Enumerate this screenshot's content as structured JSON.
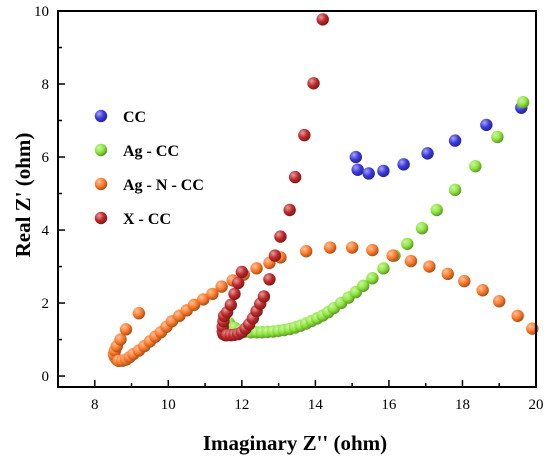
{
  "chart_data": {
    "type": "scatter",
    "xlabel": "Imaginary Z'' (ohm)",
    "ylabel": "Real Z' (ohm)",
    "xlim": [
      7,
      20
    ],
    "ylim": [
      -0.3,
      10
    ],
    "xticks": [
      8,
      10,
      12,
      14,
      16,
      18,
      20
    ],
    "yticks": [
      0,
      2,
      4,
      6,
      8,
      10
    ],
    "grid": false,
    "legend_position": "upper-left",
    "series": [
      {
        "name": "CC",
        "color": "#3a3ae0",
        "points": [
          [
            15.1,
            6.0
          ],
          [
            15.15,
            5.65
          ],
          [
            15.45,
            5.55
          ],
          [
            15.85,
            5.62
          ],
          [
            16.4,
            5.8
          ],
          [
            17.05,
            6.1
          ],
          [
            17.8,
            6.45
          ],
          [
            18.65,
            6.88
          ],
          [
            19.6,
            7.35
          ]
        ]
      },
      {
        "name": "Ag - CC",
        "color": "#8ee63c",
        "points": [
          [
            11.65,
            1.45
          ],
          [
            11.8,
            1.32
          ],
          [
            11.95,
            1.25
          ],
          [
            12.1,
            1.22
          ],
          [
            12.25,
            1.2
          ],
          [
            12.4,
            1.2
          ],
          [
            12.55,
            1.2
          ],
          [
            12.7,
            1.21
          ],
          [
            12.85,
            1.22
          ],
          [
            13.0,
            1.24
          ],
          [
            13.15,
            1.26
          ],
          [
            13.3,
            1.29
          ],
          [
            13.45,
            1.33
          ],
          [
            13.6,
            1.38
          ],
          [
            13.75,
            1.44
          ],
          [
            13.9,
            1.51
          ],
          [
            14.05,
            1.58
          ],
          [
            14.2,
            1.66
          ],
          [
            14.35,
            1.75
          ],
          [
            14.5,
            1.86
          ],
          [
            14.7,
            2.0
          ],
          [
            14.9,
            2.15
          ],
          [
            15.1,
            2.3
          ],
          [
            15.3,
            2.47
          ],
          [
            15.55,
            2.68
          ],
          [
            15.85,
            2.95
          ],
          [
            16.15,
            3.3
          ],
          [
            16.5,
            3.62
          ],
          [
            16.9,
            4.05
          ],
          [
            17.3,
            4.55
          ],
          [
            17.8,
            5.1
          ],
          [
            18.35,
            5.75
          ],
          [
            18.95,
            6.55
          ],
          [
            19.65,
            7.5
          ]
        ]
      },
      {
        "name": "Ag - N - CC",
        "color": "#ff7a2a",
        "points": [
          [
            8.65,
            0.42
          ],
          [
            8.6,
            0.45
          ],
          [
            8.55,
            0.52
          ],
          [
            8.52,
            0.6
          ],
          [
            8.55,
            0.7
          ],
          [
            8.6,
            0.82
          ],
          [
            8.7,
            1.0
          ],
          [
            8.85,
            1.28
          ],
          [
            9.2,
            1.72
          ],
          [
            8.65,
            0.42
          ],
          [
            8.75,
            0.42
          ],
          [
            8.85,
            0.45
          ],
          [
            8.95,
            0.52
          ],
          [
            9.05,
            0.6
          ],
          [
            9.2,
            0.7
          ],
          [
            9.35,
            0.82
          ],
          [
            9.5,
            0.95
          ],
          [
            9.65,
            1.08
          ],
          [
            9.8,
            1.2
          ],
          [
            9.95,
            1.35
          ],
          [
            10.1,
            1.5
          ],
          [
            10.3,
            1.65
          ],
          [
            10.5,
            1.8
          ],
          [
            10.7,
            1.95
          ],
          [
            10.95,
            2.1
          ],
          [
            11.2,
            2.25
          ],
          [
            11.45,
            2.45
          ],
          [
            11.75,
            2.62
          ],
          [
            12.05,
            2.78
          ],
          [
            12.4,
            2.95
          ],
          [
            12.75,
            3.1
          ],
          [
            13.05,
            3.25
          ],
          [
            13.75,
            3.42
          ],
          [
            14.4,
            3.52
          ],
          [
            15.0,
            3.52
          ],
          [
            15.55,
            3.45
          ],
          [
            16.1,
            3.3
          ],
          [
            16.6,
            3.15
          ],
          [
            17.1,
            3.0
          ],
          [
            17.6,
            2.8
          ],
          [
            18.05,
            2.6
          ],
          [
            18.55,
            2.35
          ],
          [
            19.0,
            2.05
          ],
          [
            19.5,
            1.65
          ],
          [
            19.9,
            1.3
          ]
        ]
      },
      {
        "name": "X - CC",
        "color": "#c0282a",
        "points": [
          [
            11.55,
            1.12
          ],
          [
            11.5,
            1.15
          ],
          [
            11.48,
            1.22
          ],
          [
            11.48,
            1.35
          ],
          [
            11.5,
            1.5
          ],
          [
            11.52,
            1.65
          ],
          [
            11.6,
            1.75
          ],
          [
            11.7,
            1.95
          ],
          [
            11.8,
            2.25
          ],
          [
            11.9,
            2.55
          ],
          [
            12.0,
            2.85
          ],
          [
            11.6,
            1.12
          ],
          [
            11.7,
            1.12
          ],
          [
            11.8,
            1.13
          ],
          [
            11.9,
            1.15
          ],
          [
            12.0,
            1.2
          ],
          [
            12.1,
            1.3
          ],
          [
            12.2,
            1.42
          ],
          [
            12.3,
            1.58
          ],
          [
            12.4,
            1.78
          ],
          [
            12.5,
            1.98
          ],
          [
            12.6,
            2.18
          ],
          [
            12.75,
            2.65
          ],
          [
            12.9,
            3.3
          ],
          [
            13.05,
            3.82
          ],
          [
            13.3,
            4.55
          ],
          [
            13.45,
            5.45
          ],
          [
            13.7,
            6.6
          ],
          [
            13.95,
            8.02
          ],
          [
            14.2,
            9.77
          ]
        ]
      }
    ]
  }
}
